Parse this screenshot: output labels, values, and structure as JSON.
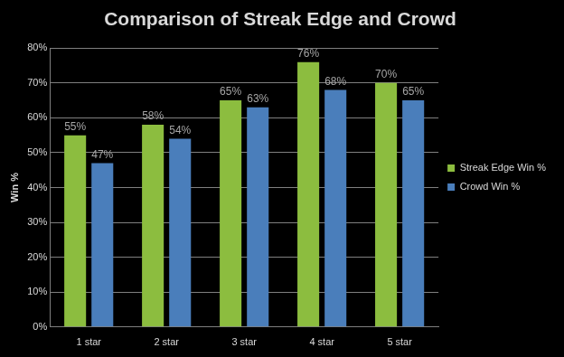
{
  "chart_data": {
    "type": "bar",
    "title": "Comparison of Streak Edge and Crowd",
    "y_label": "Win %",
    "categories": [
      "1 star",
      "2 star",
      "3 star",
      "4 star",
      "5 star"
    ],
    "series": [
      {
        "name": "Streak Edge Win %",
        "color": "#8cbd3f",
        "values": [
          55,
          58,
          65,
          76,
          70
        ],
        "value_labels": [
          "55%",
          "58%",
          "65%",
          "76%",
          "70%"
        ]
      },
      {
        "name": "Crowd Win %",
        "color": "#4a7ebb",
        "values": [
          47,
          54,
          63,
          68,
          65
        ],
        "value_labels": [
          "47%",
          "54%",
          "63%",
          "68%",
          "65%"
        ]
      }
    ],
    "ylim": [
      0,
      80
    ],
    "yticks": [
      {
        "value": 0,
        "label": "0%"
      },
      {
        "value": 10,
        "label": "10%"
      },
      {
        "value": 20,
        "label": "20%"
      },
      {
        "value": 30,
        "label": "30%"
      },
      {
        "value": 40,
        "label": "40%"
      },
      {
        "value": 50,
        "label": "50%"
      },
      {
        "value": 60,
        "label": "60%"
      },
      {
        "value": 70,
        "label": "70%"
      },
      {
        "value": 80,
        "label": "80%"
      }
    ],
    "grid": true,
    "legend": "right",
    "data_labels": true
  }
}
